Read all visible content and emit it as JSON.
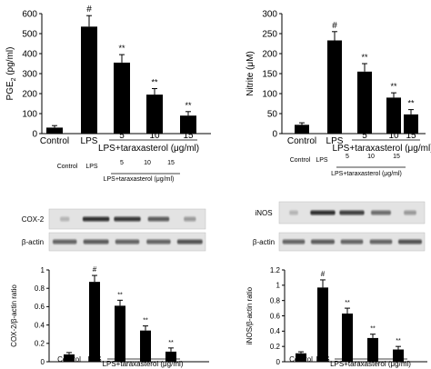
{
  "chart_data": [
    {
      "type": "bar",
      "panel": "top-left",
      "categories": [
        "Control",
        "LPS",
        "5",
        "10",
        "15"
      ],
      "values": [
        30,
        535,
        355,
        195,
        90
      ],
      "errors": [
        10,
        55,
        40,
        30,
        20
      ],
      "markers": [
        "",
        "#",
        "**",
        "**",
        "**"
      ],
      "ylabel": "PGE2 (pg/ml)",
      "ylabel_main": "PGE",
      "ylabel_sub": "2",
      "ylabel_rest": " (pg/ml)",
      "yticks": [
        "0",
        "100",
        "200",
        "300",
        "400",
        "500",
        "600"
      ],
      "ylim": [
        0,
        600
      ],
      "group_label": "LPS+taraxasterol (μg/ml)"
    },
    {
      "type": "bar",
      "panel": "top-right",
      "categories": [
        "Control",
        "LPS",
        "5",
        "10",
        "15"
      ],
      "values": [
        22,
        233,
        155,
        90,
        48
      ],
      "errors": [
        5,
        22,
        20,
        12,
        12
      ],
      "markers": [
        "",
        "#",
        "**",
        "**",
        "**"
      ],
      "ylabel": "Nitrite (μM)",
      "yticks": [
        "0",
        "50",
        "100",
        "150",
        "200",
        "250",
        "300"
      ],
      "ylim": [
        0,
        300
      ],
      "group_label": "LPS+taraxasterol (μg/ml)"
    },
    {
      "type": "bar",
      "panel": "bottom-left",
      "categories": [
        "Control",
        "LPS",
        "5",
        "10",
        "15"
      ],
      "values": [
        0.08,
        0.87,
        0.61,
        0.34,
        0.11
      ],
      "errors": [
        0.02,
        0.07,
        0.06,
        0.05,
        0.04
      ],
      "markers": [
        "",
        "#",
        "**",
        "**",
        "**"
      ],
      "ylabel": "COX-2/β-actin ratio",
      "yticks": [
        "0",
        "0.2",
        "0.4",
        "0.6",
        "0.8",
        "1"
      ],
      "ylim": [
        0,
        1
      ],
      "group_label": "LPS+taraxasterol (μg/ml)"
    },
    {
      "type": "bar",
      "panel": "bottom-right",
      "categories": [
        "Control",
        "LPS",
        "5",
        "10",
        "15"
      ],
      "values": [
        0.11,
        0.97,
        0.63,
        0.31,
        0.16
      ],
      "errors": [
        0.02,
        0.1,
        0.07,
        0.05,
        0.04
      ],
      "markers": [
        "",
        "#",
        "**",
        "**",
        "**"
      ],
      "ylabel": "iNOS/β-actin ratio",
      "yticks": [
        "0",
        "0.2",
        "0.4",
        "0.6",
        "0.8",
        "1",
        "1.2"
      ],
      "ylim": [
        0,
        1.2
      ],
      "group_label": "LPS+taraxasterol (μg/ml)"
    }
  ],
  "blots": [
    {
      "panel": "left",
      "header_control": "Control",
      "header_lps": "LPS",
      "doses": [
        "5",
        "10",
        "15"
      ],
      "group_label": "LPS+taraxasterol (μg/ml)",
      "rows": [
        "COX-2",
        "β-actin"
      ]
    },
    {
      "panel": "right",
      "header_control": "Control",
      "header_lps": "LPS",
      "doses": [
        "5",
        "10",
        "15"
      ],
      "group_label": "LPS+taraxasterol (μg/ml)",
      "rows": [
        "iNOS",
        "β-actin"
      ]
    }
  ]
}
